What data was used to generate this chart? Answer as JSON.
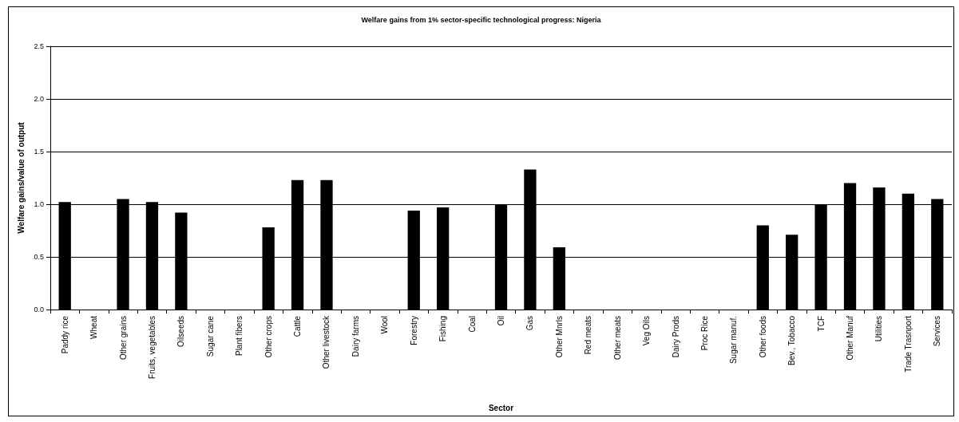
{
  "chart_data": {
    "type": "bar",
    "title": "Welfare gains from 1% sector-specific technological progress: Nigeria",
    "xlabel": "Sector",
    "ylabel": "Welfare gains/value of output",
    "categories": [
      "Paddy rice",
      "Wheat",
      "Other grains",
      "Fruits, vegetables",
      "Oilseeds",
      "Sugar cane",
      "Plant fibers",
      "Other crops",
      "Cattle",
      "Other livestock",
      "Dairy farms",
      "Wool",
      "Forestry",
      "Fishing",
      "Coal",
      "Oil",
      "Gas",
      "Other Mnrls",
      "Red meats",
      "Other meats",
      "Veg Oils",
      "Dairy Prods",
      "Proc Rice",
      "Sugar manuf.",
      "Other foods",
      "Bev., Tobacco",
      "TCF",
      "Other Manuf",
      "Utilities",
      "Trade Trasnport",
      "Services"
    ],
    "values": [
      1.02,
      0,
      1.05,
      1.02,
      0.92,
      0,
      0,
      0.78,
      1.23,
      1.23,
      0,
      0,
      0.94,
      0.97,
      0,
      1.0,
      1.33,
      0.59,
      0,
      0,
      0,
      0,
      0,
      0,
      0.8,
      0.71,
      1.0,
      1.2,
      1.16,
      1.1,
      1.05
    ],
    "color": "#000000",
    "ylim": [
      0,
      2.5
    ],
    "yticks": [
      {
        "value": 0,
        "label": "0.0"
      },
      {
        "value": 0.5,
        "label": "0.5"
      },
      {
        "value": 1,
        "label": "1.0"
      },
      {
        "value": 1.5,
        "label": "1.5"
      },
      {
        "value": 2,
        "label": "2.0"
      },
      {
        "value": 2.5,
        "label": "2.5"
      }
    ],
    "grid": "y"
  }
}
